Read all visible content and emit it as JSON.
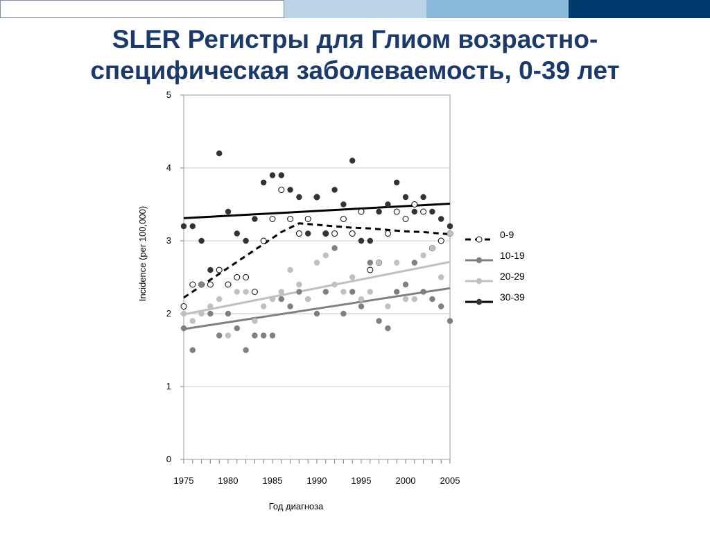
{
  "slide": {
    "title_line1": "SLER Регистры для Глиом возрастно-",
    "title_line2": "специфическая заболеваемость, 0-39 лет"
  },
  "colors": {
    "title": "#1b3a6b",
    "bar_light": "#bcd5e6",
    "bar_mid": "#8ab8d8",
    "bar_dark": "#003a6c"
  },
  "chart_data": {
    "type": "scatter",
    "xlabel": "Год диагноза",
    "ylabel": "Incidence (per 100,000)",
    "xlim": [
      1975,
      2005
    ],
    "ylim": [
      0,
      5
    ],
    "x_ticks": [
      1975,
      1980,
      1985,
      1990,
      1995,
      2000,
      2005
    ],
    "y_ticks": [
      0,
      1,
      2,
      3,
      4,
      5
    ],
    "grid": "horizontal",
    "legend_position": "right",
    "series": [
      {
        "name": "0-9",
        "marker": "open-circle",
        "marker_color": "#000000",
        "line_style": "dashed",
        "line_color": "#000000",
        "x": [
          1975,
          1976,
          1977,
          1978,
          1979,
          1980,
          1981,
          1982,
          1983,
          1984,
          1985,
          1986,
          1987,
          1988,
          1989,
          1990,
          1991,
          1992,
          1993,
          1994,
          1995,
          1996,
          1997,
          1998,
          1999,
          2000,
          2001,
          2002,
          2003,
          2004,
          2005
        ],
        "y": [
          2.1,
          2.4,
          2.4,
          2.4,
          2.6,
          2.4,
          2.5,
          2.5,
          2.3,
          3.0,
          3.3,
          3.7,
          3.3,
          3.1,
          3.3,
          3.6,
          3.1,
          3.1,
          3.3,
          3.1,
          3.4,
          2.6,
          2.7,
          3.1,
          3.4,
          3.3,
          3.5,
          3.4,
          2.9,
          3.0,
          3.1
        ],
        "trend": [
          [
            1975,
            2.22
          ],
          [
            1986,
            3.12
          ],
          [
            1988,
            3.24
          ],
          [
            1990,
            3.22
          ],
          [
            1992,
            3.2
          ],
          [
            1994,
            3.18
          ],
          [
            1996,
            3.17
          ],
          [
            1998,
            3.15
          ],
          [
            2000,
            3.13
          ],
          [
            2002,
            3.12
          ],
          [
            2005,
            3.09
          ]
        ]
      },
      {
        "name": "10-19",
        "marker": "filled-circle",
        "marker_color": "#808080",
        "line_style": "solid",
        "line_color": "#808080",
        "x": [
          1975,
          1976,
          1977,
          1978,
          1979,
          1980,
          1981,
          1982,
          1983,
          1984,
          1985,
          1986,
          1987,
          1988,
          1989,
          1990,
          1991,
          1992,
          1993,
          1994,
          1995,
          1996,
          1997,
          1998,
          1999,
          2000,
          2001,
          2002,
          2003,
          2004,
          2005
        ],
        "y": [
          1.8,
          1.5,
          2.4,
          2.0,
          1.7,
          2.0,
          1.8,
          1.5,
          1.7,
          1.7,
          1.7,
          2.2,
          2.1,
          2.3,
          2.2,
          2.0,
          2.3,
          2.9,
          2.0,
          2.3,
          2.1,
          2.7,
          1.9,
          1.8,
          2.3,
          2.4,
          2.7,
          2.3,
          2.2,
          2.1,
          1.9
        ],
        "trend": [
          [
            1975,
            1.79
          ],
          [
            2005,
            2.35
          ]
        ]
      },
      {
        "name": "20-29",
        "marker": "filled-circle",
        "marker_color": "#c0c0c0",
        "line_style": "solid",
        "line_color": "#c0c0c0",
        "x": [
          1975,
          1976,
          1977,
          1978,
          1979,
          1980,
          1981,
          1982,
          1983,
          1984,
          1985,
          1986,
          1987,
          1988,
          1989,
          1990,
          1991,
          1992,
          1993,
          1994,
          1995,
          1996,
          1997,
          1998,
          1999,
          2000,
          2001,
          2002,
          2003,
          2004,
          2005
        ],
        "y": [
          2.0,
          1.9,
          2.0,
          2.1,
          2.2,
          1.7,
          2.3,
          2.3,
          1.9,
          2.1,
          2.2,
          2.3,
          2.6,
          2.4,
          2.2,
          2.7,
          2.8,
          2.4,
          2.3,
          2.5,
          2.2,
          2.3,
          2.7,
          2.1,
          2.7,
          2.2,
          2.2,
          2.8,
          2.9,
          2.5,
          3.1
        ],
        "trend": [
          [
            1975,
            1.99
          ],
          [
            2005,
            2.71
          ]
        ]
      },
      {
        "name": "30-39",
        "marker": "filled-circle",
        "marker_color": "#333333",
        "line_style": "solid",
        "line_color": "#000000",
        "x": [
          1975,
          1976,
          1977,
          1978,
          1979,
          1980,
          1981,
          1982,
          1983,
          1984,
          1985,
          1986,
          1987,
          1988,
          1989,
          1990,
          1991,
          1992,
          1993,
          1994,
          1995,
          1996,
          1997,
          1998,
          1999,
          2000,
          2001,
          2002,
          2003,
          2004,
          2005
        ],
        "y": [
          3.2,
          3.2,
          3.0,
          2.6,
          4.2,
          3.4,
          3.1,
          3.0,
          3.3,
          3.8,
          3.9,
          3.9,
          3.7,
          3.6,
          3.1,
          3.6,
          3.1,
          3.7,
          3.5,
          4.1,
          3.0,
          3.0,
          3.4,
          3.5,
          3.8,
          3.6,
          3.4,
          3.6,
          3.4,
          3.3,
          3.2
        ],
        "trend": [
          [
            1975,
            3.31
          ],
          [
            2005,
            3.51
          ]
        ]
      }
    ]
  }
}
